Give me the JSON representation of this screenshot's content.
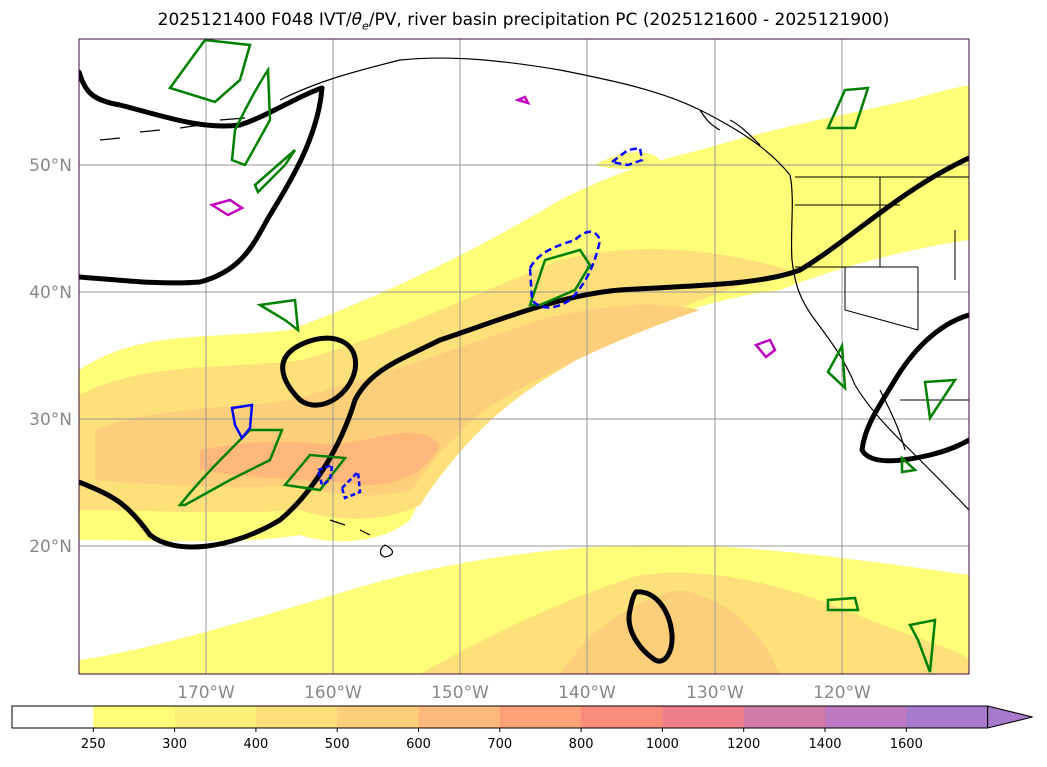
{
  "title_parts": {
    "before": "2025121400 F048 IVT/",
    "theta": "θ",
    "theta_sub": "e",
    "after": "/PV, river basin precipitation PC (2025121600 - 2025121900)"
  },
  "chart_data": {
    "type": "map-contour",
    "lon_range": [
      -180,
      -110
    ],
    "lat_range": [
      10,
      60
    ],
    "lat_ticks": [
      "50°N",
      "40°N",
      "30°N",
      "20°N"
    ],
    "lat_tick_values": [
      50,
      40,
      30,
      20
    ],
    "lon_ticks": [
      "170°W",
      "160°W",
      "150°W",
      "140°W",
      "130°W",
      "120°W"
    ],
    "lon_tick_values": [
      -170,
      -160,
      -150,
      -140,
      -130,
      -120
    ],
    "grid": true,
    "colorbar": {
      "levels": [
        "250",
        "300",
        "400",
        "500",
        "600",
        "700",
        "800",
        "1000",
        "1200",
        "1400",
        "1600"
      ],
      "colors": [
        "#ffffff",
        "#fefe78",
        "#fdef78",
        "#fde07a",
        "#fdcf7a",
        "#fdb87a",
        "#fda278",
        "#f98b7a",
        "#ee7f8a",
        "#d27aa6",
        "#bd7ac0",
        "#a87acc"
      ],
      "extend": "max"
    },
    "ivt_color_fill": [
      "#fefe78",
      "#fde07a",
      "#fdcf7a",
      "#fdb87a"
    ],
    "pv_line_color": "#000000",
    "precip_contour_color": "#008000",
    "blue_contour_color": "#0000ff",
    "magenta_contour_color": "#c000c0"
  }
}
